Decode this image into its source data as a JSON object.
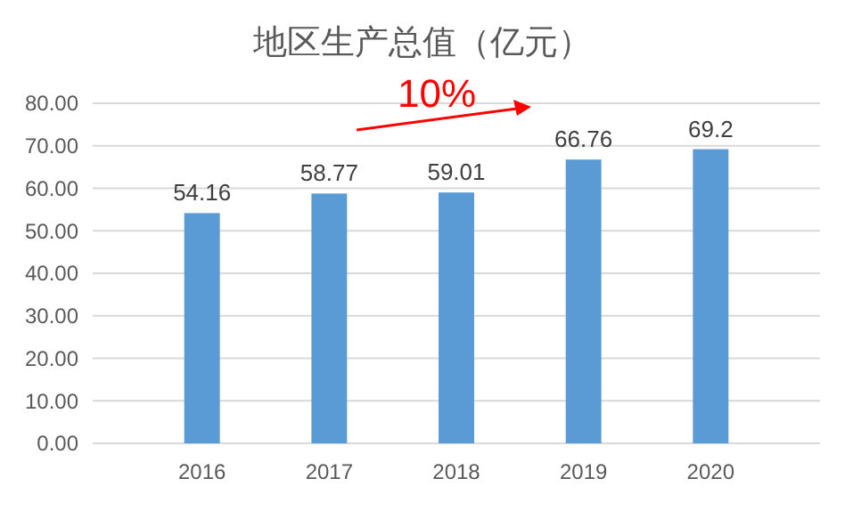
{
  "chart_data": {
    "type": "bar",
    "title": "地区生产总值（亿元）",
    "categories": [
      "2016",
      "2017",
      "2018",
      "2019",
      "2020"
    ],
    "values": [
      54.16,
      58.77,
      59.01,
      66.76,
      69.2
    ],
    "color": "#5b9bd5",
    "ylim": [
      0,
      80
    ],
    "yticks": [
      {
        "value": 0,
        "label": "0.00"
      },
      {
        "value": 10,
        "label": "10.00"
      },
      {
        "value": 20,
        "label": "20.00"
      },
      {
        "value": 30,
        "label": "30.00"
      },
      {
        "value": 40,
        "label": "40.00"
      },
      {
        "value": 50,
        "label": "50.00"
      },
      {
        "value": 60,
        "label": "60.00"
      },
      {
        "value": 70,
        "label": "70.00"
      },
      {
        "value": 80,
        "label": "80.00"
      }
    ],
    "grid": "y",
    "data_labels": true,
    "annotations": [
      "10%"
    ]
  }
}
